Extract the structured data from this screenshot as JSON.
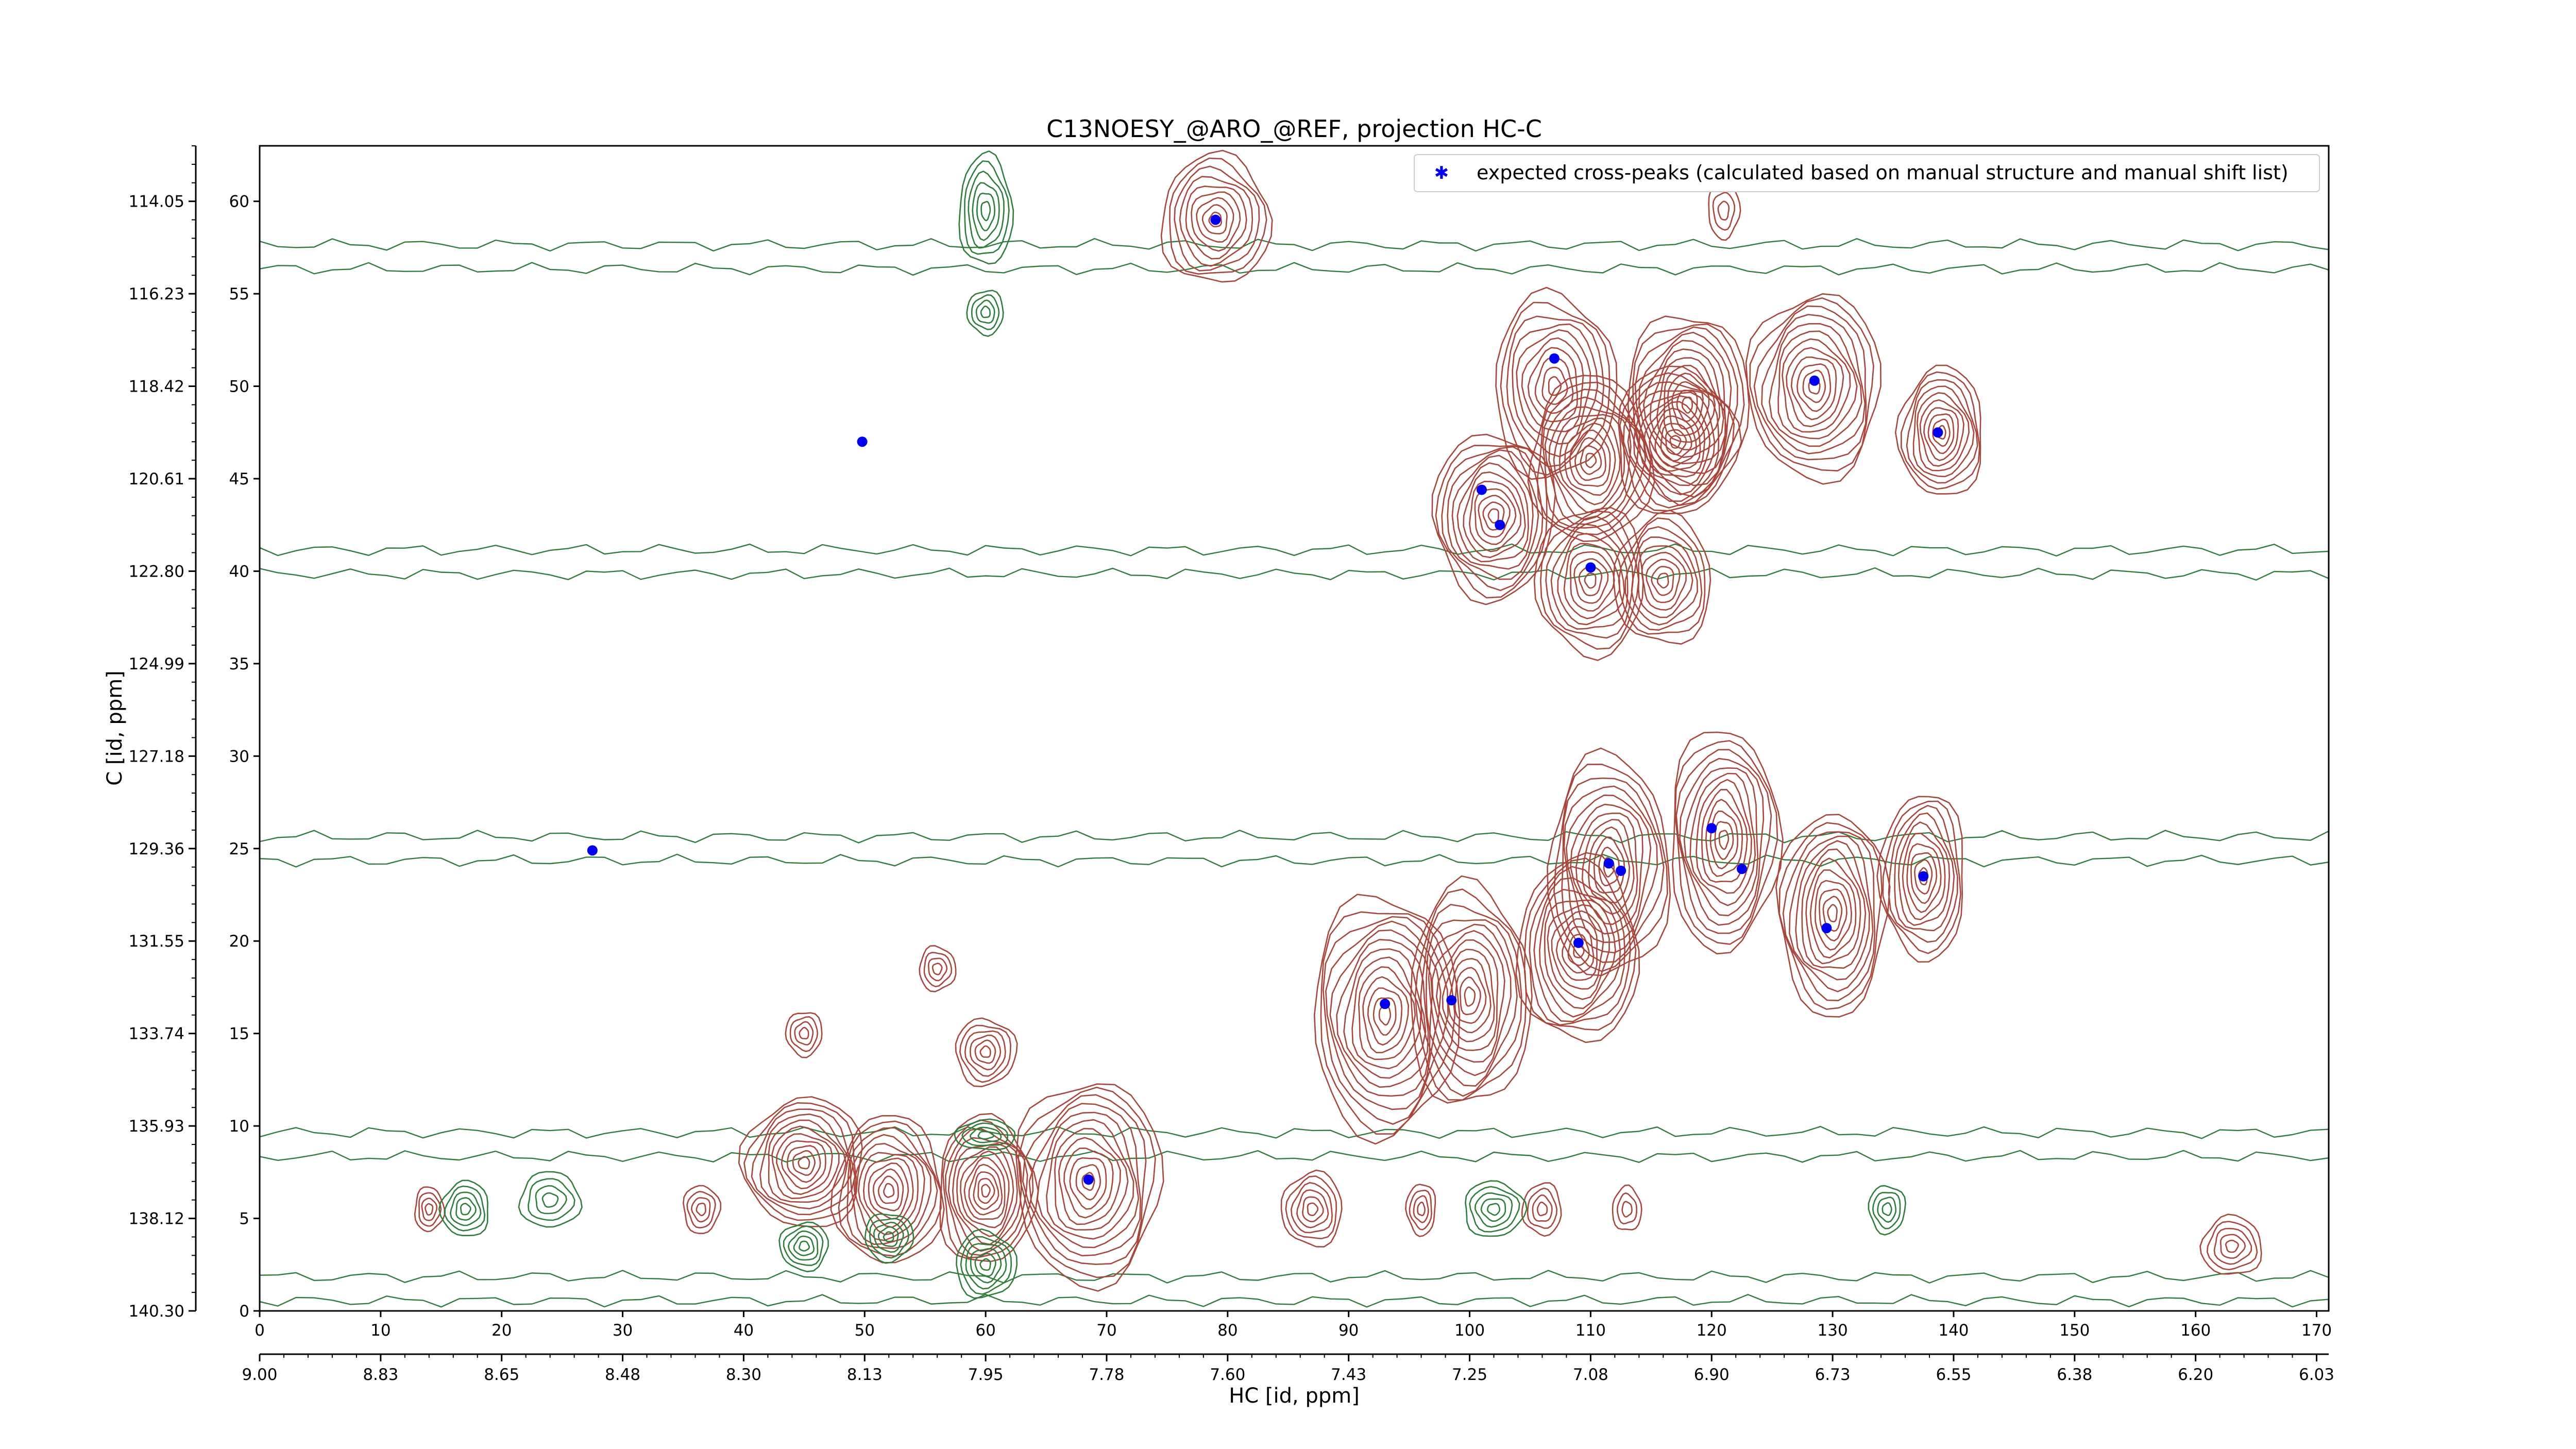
{
  "colors": {
    "positive_contour": "#a8463c",
    "negative_contour": "#2e7d3a",
    "peak_marker": "#0000ee",
    "axes": "#000000"
  },
  "chart_data": {
    "type": "contour",
    "title": "C13NOESY_@ARO_@REF, projection HC-C",
    "xlabel": "HC [id, ppm]",
    "ylabel": "C [id, ppm]",
    "xlim": [
      0,
      171
    ],
    "ylim": [
      0,
      63
    ],
    "x_ticks_index": [
      "0",
      "10",
      "20",
      "30",
      "40",
      "50",
      "60",
      "70",
      "80",
      "90",
      "100",
      "110",
      "120",
      "130",
      "140",
      "150",
      "160",
      "170"
    ],
    "x_ticks_ppm": [
      "9.00",
      "8.83",
      "8.65",
      "8.48",
      "8.30",
      "8.13",
      "7.95",
      "7.78",
      "7.60",
      "7.43",
      "7.25",
      "7.08",
      "6.90",
      "6.73",
      "6.55",
      "6.38",
      "6.20",
      "6.03"
    ],
    "y_ticks_index": [
      "0",
      "5",
      "10",
      "15",
      "20",
      "25",
      "30",
      "35",
      "40",
      "45",
      "50",
      "55",
      "60"
    ],
    "y_ticks_ppm": [
      "140.30",
      "138.12",
      "135.93",
      "133.74",
      "131.55",
      "129.36",
      "127.18",
      "124.99",
      "122.80",
      "120.61",
      "118.42",
      "116.23",
      "114.05"
    ],
    "legend": {
      "position": "top-right",
      "entries": [
        "expected cross-peaks (calculated based on manual structure and manual shift list)"
      ]
    },
    "grid": false,
    "expected_peaks": [
      {
        "x": 79,
        "y": 59
      },
      {
        "x": 107,
        "y": 51.5
      },
      {
        "x": 128.5,
        "y": 50.3
      },
      {
        "x": 138.7,
        "y": 47.5
      },
      {
        "x": 49.8,
        "y": 47
      },
      {
        "x": 101,
        "y": 44.4
      },
      {
        "x": 102.5,
        "y": 42.5
      },
      {
        "x": 110,
        "y": 40.2
      },
      {
        "x": 120,
        "y": 26.1
      },
      {
        "x": 111.5,
        "y": 24.2
      },
      {
        "x": 112.5,
        "y": 23.8
      },
      {
        "x": 122.5,
        "y": 23.9
      },
      {
        "x": 137.5,
        "y": 23.5
      },
      {
        "x": 27.5,
        "y": 24.9
      },
      {
        "x": 129.5,
        "y": 20.7
      },
      {
        "x": 109,
        "y": 19.9
      },
      {
        "x": 98.5,
        "y": 16.8
      },
      {
        "x": 93,
        "y": 16.6
      },
      {
        "x": 68.5,
        "y": 7.1
      }
    ],
    "positive_peaks": [
      {
        "x": 79,
        "y": 59,
        "rx": 4.5,
        "ry": 3.5,
        "n": 9
      },
      {
        "x": 107,
        "y": 50,
        "rx": 5,
        "ry": 5,
        "n": 10
      },
      {
        "x": 118,
        "y": 49,
        "rx": 5,
        "ry": 5,
        "n": 12
      },
      {
        "x": 128.5,
        "y": 50,
        "rx": 5.5,
        "ry": 5,
        "n": 12
      },
      {
        "x": 139,
        "y": 47.5,
        "rx": 3.5,
        "ry": 3.5,
        "n": 10
      },
      {
        "x": 110,
        "y": 46,
        "rx": 5,
        "ry": 4.5,
        "n": 12
      },
      {
        "x": 117,
        "y": 47,
        "rx": 5,
        "ry": 4,
        "n": 12
      },
      {
        "x": 102,
        "y": 43,
        "rx": 5,
        "ry": 4.5,
        "n": 12
      },
      {
        "x": 110,
        "y": 39.5,
        "rx": 4.5,
        "ry": 4,
        "n": 10
      },
      {
        "x": 116,
        "y": 39.5,
        "rx": 4,
        "ry": 3.5,
        "n": 9
      },
      {
        "x": 111.5,
        "y": 24,
        "rx": 5,
        "ry": 6,
        "n": 12
      },
      {
        "x": 121,
        "y": 25.5,
        "rx": 4.5,
        "ry": 6,
        "n": 12
      },
      {
        "x": 130,
        "y": 21.5,
        "rx": 4.5,
        "ry": 5.5,
        "n": 12
      },
      {
        "x": 137.5,
        "y": 23.5,
        "rx": 3.5,
        "ry": 4.5,
        "n": 10
      },
      {
        "x": 109,
        "y": 19.5,
        "rx": 5,
        "ry": 5,
        "n": 12
      },
      {
        "x": 100,
        "y": 17,
        "rx": 5,
        "ry": 6,
        "n": 12
      },
      {
        "x": 93,
        "y": 16,
        "rx": 6,
        "ry": 6.5,
        "n": 13
      },
      {
        "x": 68.5,
        "y": 7,
        "rx": 6,
        "ry": 5.5,
        "n": 12
      },
      {
        "x": 45,
        "y": 8,
        "rx": 5,
        "ry": 3.5,
        "n": 11
      },
      {
        "x": 52,
        "y": 6.5,
        "rx": 4.5,
        "ry": 4,
        "n": 11
      },
      {
        "x": 60,
        "y": 6.5,
        "rx": 4,
        "ry": 4,
        "n": 12
      },
      {
        "x": 60,
        "y": 14,
        "rx": 2.5,
        "ry": 1.8,
        "n": 6
      },
      {
        "x": 45,
        "y": 15,
        "rx": 1.5,
        "ry": 1.2,
        "n": 4
      },
      {
        "x": 87,
        "y": 5.5,
        "rx": 2.5,
        "ry": 2,
        "n": 6
      },
      {
        "x": 163,
        "y": 3.5,
        "rx": 2.5,
        "ry": 1.6,
        "n": 5
      },
      {
        "x": 14,
        "y": 5.5,
        "rx": 1.2,
        "ry": 1.2,
        "n": 4
      },
      {
        "x": 36.5,
        "y": 5.5,
        "rx": 1.5,
        "ry": 1.3,
        "n": 4
      },
      {
        "x": 96,
        "y": 5.5,
        "rx": 1.2,
        "ry": 1.4,
        "n": 4
      },
      {
        "x": 106,
        "y": 5.5,
        "rx": 1.6,
        "ry": 1.4,
        "n": 4
      },
      {
        "x": 113,
        "y": 5.5,
        "rx": 1.2,
        "ry": 1.2,
        "n": 3
      },
      {
        "x": 56,
        "y": 18.5,
        "rx": 1.5,
        "ry": 1.2,
        "n": 4
      },
      {
        "x": 121,
        "y": 59.5,
        "rx": 1.3,
        "ry": 1.5,
        "n": 3
      }
    ],
    "negative_peaks": [
      {
        "x": 60,
        "y": 59.5,
        "rx": 2.2,
        "ry": 3,
        "n": 6
      },
      {
        "x": 60,
        "y": 2.5,
        "rx": 2.5,
        "ry": 1.8,
        "n": 6
      },
      {
        "x": 52,
        "y": 4,
        "rx": 2,
        "ry": 1.3,
        "n": 5
      },
      {
        "x": 45,
        "y": 3.5,
        "rx": 2,
        "ry": 1.3,
        "n": 5
      },
      {
        "x": 17,
        "y": 5.5,
        "rx": 2,
        "ry": 1.5,
        "n": 5
      },
      {
        "x": 24,
        "y": 6,
        "rx": 2.5,
        "ry": 1.5,
        "n": 4
      },
      {
        "x": 102,
        "y": 5.5,
        "rx": 2.5,
        "ry": 1.5,
        "n": 5
      },
      {
        "x": 134.5,
        "y": 5.5,
        "rx": 1.5,
        "ry": 1.3,
        "n": 4
      },
      {
        "x": 60,
        "y": 54,
        "rx": 1.5,
        "ry": 1.2,
        "n": 4
      },
      {
        "x": 60,
        "y": 9.5,
        "rx": 2.5,
        "ry": 0.8,
        "n": 4
      }
    ],
    "noise_bands": [
      {
        "y": 57,
        "sign": "negative"
      },
      {
        "y": 40.5,
        "sign": "negative"
      },
      {
        "y": 25,
        "sign": "negative"
      },
      {
        "y": 9,
        "sign": "negative"
      },
      {
        "y": 1.2,
        "sign": "negative"
      }
    ]
  }
}
